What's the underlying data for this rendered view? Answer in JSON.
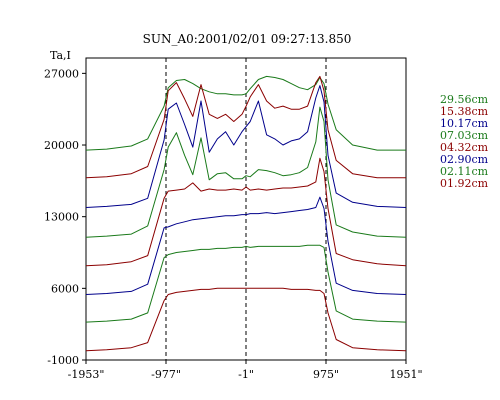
{
  "chart_data": {
    "type": "line",
    "title": "SUN_A0:2001/02/01 09:27:13.850",
    "ylabel": "Ta,I",
    "xlabel": "",
    "xlim": [
      -1953,
      1951
    ],
    "ylim": [
      -1000,
      28500
    ],
    "y_ticks": [
      27000,
      20000,
      13000,
      6000,
      -1000
    ],
    "x_ticks": [
      {
        "value": -1953,
        "label": "-1953\""
      },
      {
        "value": -977,
        "label": "-977\""
      },
      {
        "value": -1,
        "label": "-1\""
      },
      {
        "value": 975,
        "label": "975\""
      },
      {
        "value": 1951,
        "label": "1951\""
      }
    ],
    "vlines": [
      -977,
      -1,
      975
    ],
    "grid": false,
    "legend_position": "right",
    "x": [
      -1953,
      -1700,
      -1400,
      -1200,
      -1000,
      -950,
      -850,
      -750,
      -650,
      -550,
      -450,
      -350,
      -250,
      -150,
      -50,
      0,
      50,
      150,
      250,
      350,
      450,
      550,
      650,
      750,
      850,
      900,
      950,
      1000,
      1100,
      1300,
      1600,
      1951
    ],
    "series": [
      {
        "name": "29.56cm",
        "color": "#1a7a1a",
        "values": [
          19500,
          19600,
          19900,
          20600,
          23800,
          25600,
          26300,
          26400,
          26000,
          25500,
          25200,
          25000,
          25000,
          24900,
          24900,
          25000,
          25500,
          26400,
          26700,
          26600,
          26400,
          26000,
          25600,
          25400,
          25900,
          26600,
          26000,
          24000,
          21500,
          20000,
          19500,
          19500
        ]
      },
      {
        "name": "15.38cm",
        "color": "#8b0000",
        "values": [
          16800,
          16900,
          17200,
          17900,
          22500,
          25300,
          26100,
          24500,
          22800,
          25900,
          23000,
          22600,
          23000,
          22300,
          23000,
          23800,
          24700,
          25900,
          24300,
          23600,
          23800,
          23500,
          23500,
          23800,
          26100,
          26700,
          25300,
          21500,
          18500,
          17200,
          16800,
          16800
        ]
      },
      {
        "name": "10.17cm",
        "color": "#00008b",
        "values": [
          13900,
          14000,
          14200,
          14800,
          20500,
          23500,
          24100,
          22000,
          19800,
          24300,
          19300,
          20600,
          21300,
          20000,
          21300,
          21800,
          22300,
          24300,
          21000,
          20600,
          20000,
          20400,
          20600,
          21300,
          24600,
          25800,
          24200,
          19000,
          15300,
          14400,
          14000,
          13900
        ]
      },
      {
        "name": "07.03cm",
        "color": "#1a7a1a",
        "values": [
          11000,
          11100,
          11300,
          12100,
          17600,
          19800,
          21200,
          19000,
          17100,
          20700,
          16600,
          17200,
          17300,
          16700,
          16700,
          17000,
          16900,
          17600,
          17500,
          17300,
          17000,
          17100,
          17300,
          17800,
          20300,
          23700,
          22300,
          16600,
          12200,
          11500,
          11100,
          11000
        ]
      },
      {
        "name": "04.32cm",
        "color": "#8b0000",
        "values": [
          8200,
          8300,
          8600,
          9200,
          14800,
          15500,
          15600,
          15700,
          16300,
          15500,
          15700,
          15600,
          15600,
          15700,
          15600,
          15900,
          15600,
          15700,
          15600,
          15700,
          15800,
          15800,
          15900,
          16000,
          16400,
          18700,
          17400,
          13800,
          9400,
          8800,
          8400,
          8200
        ]
      },
      {
        "name": "02.90cm",
        "color": "#00008b",
        "values": [
          5400,
          5500,
          5700,
          6400,
          11900,
          12000,
          12300,
          12500,
          12700,
          12800,
          12900,
          13000,
          13100,
          13100,
          13200,
          13200,
          13300,
          13300,
          13400,
          13300,
          13400,
          13500,
          13600,
          13700,
          13900,
          14900,
          13800,
          10600,
          6500,
          5800,
          5500,
          5400
        ]
      },
      {
        "name": "02.11cm",
        "color": "#1a7a1a",
        "values": [
          2700,
          2800,
          3000,
          3600,
          9000,
          9300,
          9500,
          9600,
          9700,
          9800,
          9800,
          9900,
          9900,
          10000,
          10000,
          10100,
          10000,
          10100,
          10100,
          10100,
          10100,
          10100,
          10100,
          10200,
          10200,
          10200,
          10000,
          7600,
          3800,
          3000,
          2800,
          2700
        ]
      },
      {
        "name": "01.92cm",
        "color": "#8b0000",
        "values": [
          -100,
          0,
          200,
          700,
          4800,
          5400,
          5600,
          5700,
          5800,
          5900,
          5900,
          6000,
          6000,
          6000,
          6000,
          6000,
          6000,
          6000,
          6000,
          6000,
          6000,
          5900,
          5900,
          5900,
          5800,
          5800,
          5500,
          3600,
          1000,
          200,
          0,
          -100
        ]
      }
    ]
  }
}
